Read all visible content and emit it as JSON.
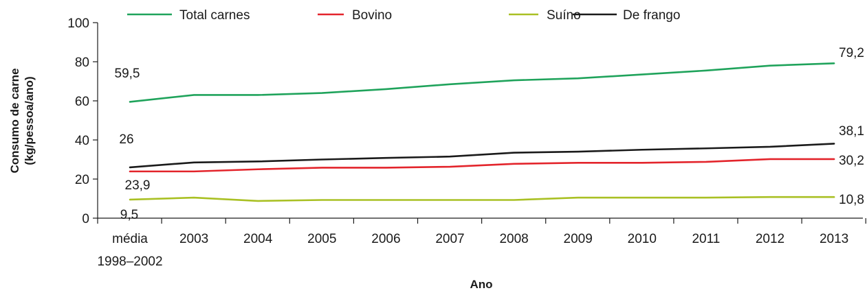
{
  "chart_data": {
    "type": "line",
    "title": "",
    "xlabel": "Ano",
    "ylabel_line1": "Consumo de carne",
    "ylabel_line2": "(kg/pessoa/ano)",
    "categories": [
      "média 1998–2002",
      "2003",
      "2004",
      "2005",
      "2006",
      "2007",
      "2008",
      "2009",
      "2010",
      "2011",
      "2012",
      "2013"
    ],
    "first_category_line1": "média",
    "first_category_line2": "1998–2002",
    "ylim": [
      0,
      100
    ],
    "yticks": [
      "0",
      "20",
      "40",
      "60",
      "80",
      "100"
    ],
    "grid": false,
    "legend_position": "top",
    "series": [
      {
        "name": "Total carnes",
        "color": "#1fa35b",
        "values": [
          59.5,
          63.0,
          63.0,
          64.0,
          66.0,
          68.5,
          70.5,
          71.5,
          73.5,
          75.5,
          78.0,
          79.2
        ],
        "start_label": "59,5",
        "end_label": "79,2"
      },
      {
        "name": "Bovino",
        "color": "#e3242b",
        "values": [
          23.9,
          23.9,
          25.0,
          25.8,
          25.8,
          26.3,
          27.8,
          28.3,
          28.3,
          28.8,
          30.2,
          30.2
        ],
        "start_label": "23,9",
        "end_label": "30,2"
      },
      {
        "name": "Suíno",
        "color": "#a9c023",
        "values": [
          9.5,
          10.5,
          8.8,
          9.3,
          9.3,
          9.3,
          9.3,
          10.5,
          10.5,
          10.5,
          10.8,
          10.8
        ],
        "start_label": "9,5",
        "end_label": "10,8"
      },
      {
        "name": "De frango",
        "color": "#1a1a1a",
        "values": [
          26.0,
          28.5,
          29.0,
          30.0,
          30.8,
          31.5,
          33.5,
          34.0,
          35.0,
          35.7,
          36.5,
          38.1
        ],
        "start_label": "26",
        "end_label": "38,1"
      }
    ]
  }
}
